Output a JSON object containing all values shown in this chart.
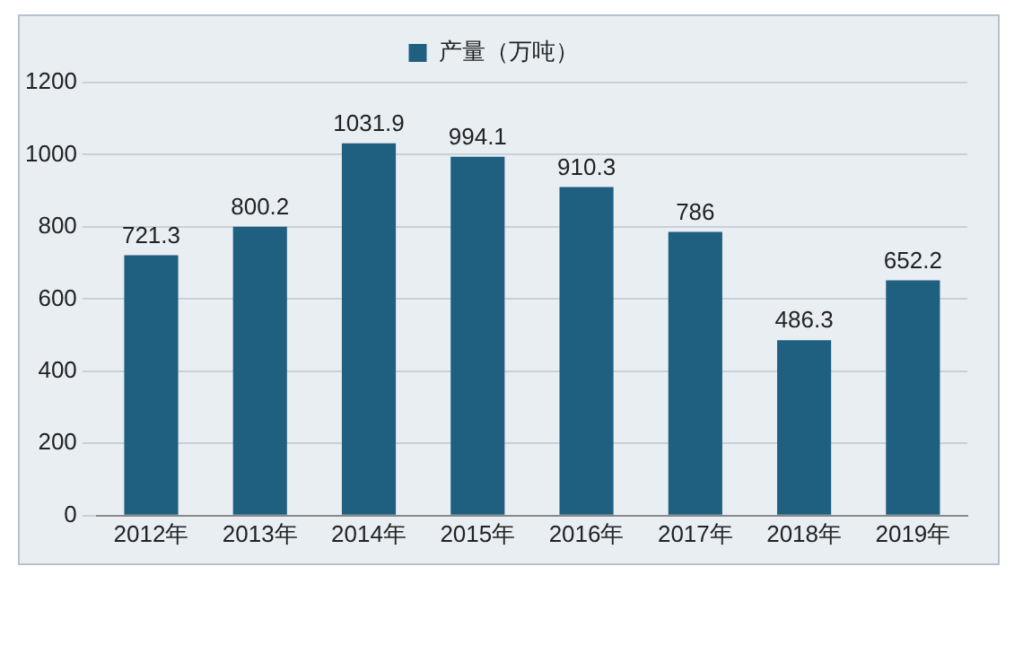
{
  "chart_data": {
    "type": "bar",
    "categories": [
      "2012年",
      "2013年",
      "2014年",
      "2015年",
      "2016年",
      "2017年",
      "2018年",
      "2019年"
    ],
    "series": [
      {
        "name": "产量（万吨）",
        "color": "#1f5f80",
        "values": [
          721.3,
          800.2,
          1031.9,
          994.1,
          910.3,
          786,
          486.3,
          652.2
        ]
      }
    ],
    "ylim": [
      0,
      1200
    ],
    "yticks": [
      0,
      200,
      400,
      600,
      800,
      1000,
      1200
    ],
    "grid": "y",
    "legend": "top",
    "data_labels": true
  }
}
